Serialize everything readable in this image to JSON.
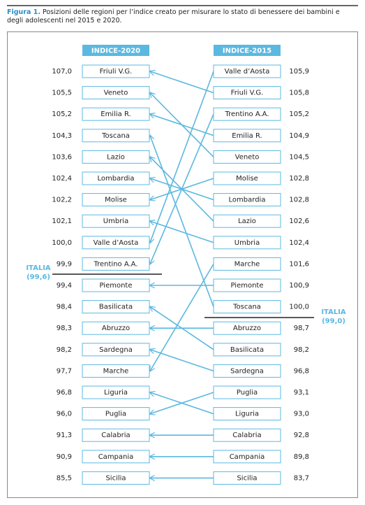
{
  "caption": {
    "label": "Figura 1.",
    "text": "Posizioni delle regioni per l’indice creato per misurare lo stato di benessere dei bambini e degli adolescenti nel 2015 e 2020."
  },
  "columns": [
    {
      "header": "INDICE-2020",
      "rows": [
        {
          "name": "Friuli V.G.",
          "value": "107,0"
        },
        {
          "name": "Veneto",
          "value": "105,5"
        },
        {
          "name": "Emilia R.",
          "value": "105,2"
        },
        {
          "name": "Toscana",
          "value": "104,3"
        },
        {
          "name": "Lazio",
          "value": "103,6"
        },
        {
          "name": "Lombardia",
          "value": "102,4"
        },
        {
          "name": "Molise",
          "value": "102,2"
        },
        {
          "name": "Umbria",
          "value": "102,1"
        },
        {
          "name": "Valle d’Aosta",
          "value": "100,0"
        },
        {
          "name": "Trentino A.A.",
          "value": "99,9"
        },
        {
          "name": "Piemonte",
          "value": "99,4"
        },
        {
          "name": "Basilicata",
          "value": "98,4"
        },
        {
          "name": "Abruzzo",
          "value": "98,3"
        },
        {
          "name": "Sardegna",
          "value": "98,2"
        },
        {
          "name": "Marche",
          "value": "97,7"
        },
        {
          "name": "Liguria",
          "value": "96,8"
        },
        {
          "name": "Puglia",
          "value": "96,0"
        },
        {
          "name": "Calabria",
          "value": "91,3"
        },
        {
          "name": "Campania",
          "value": "90,9"
        },
        {
          "name": "Sicilia",
          "value": "85,5"
        }
      ]
    },
    {
      "header": "INDICE-2015",
      "rows": [
        {
          "name": "Valle d’Aosta",
          "value": "105,9"
        },
        {
          "name": "Friuli V.G.",
          "value": "105,8"
        },
        {
          "name": "Trentino A.A.",
          "value": "105,2"
        },
        {
          "name": "Emilia R.",
          "value": "104,9"
        },
        {
          "name": "Veneto",
          "value": "104,5"
        },
        {
          "name": "Molise",
          "value": "102,8"
        },
        {
          "name": "Lombardia",
          "value": "102,8"
        },
        {
          "name": "Lazio",
          "value": "102,6"
        },
        {
          "name": "Umbria",
          "value": "102,4"
        },
        {
          "name": "Marche",
          "value": "101,6"
        },
        {
          "name": "Piemonte",
          "value": "100,9"
        },
        {
          "name": "Toscana",
          "value": "100,0"
        },
        {
          "name": "Abruzzo",
          "value": "98,7"
        },
        {
          "name": "Basilicata",
          "value": "98,2"
        },
        {
          "name": "Sardegna",
          "value": "96,8"
        },
        {
          "name": "Puglia",
          "value": "93,1"
        },
        {
          "name": "Liguria",
          "value": "93,0"
        },
        {
          "name": "Calabria",
          "value": "92,8"
        },
        {
          "name": "Campania",
          "value": "89,8"
        },
        {
          "name": "Sicilia",
          "value": "83,7"
        }
      ]
    }
  ],
  "italia": [
    {
      "label": "ITALIA",
      "value": "(99,6)"
    },
    {
      "label": "ITALIA",
      "value": "(99,0)"
    }
  ]
}
